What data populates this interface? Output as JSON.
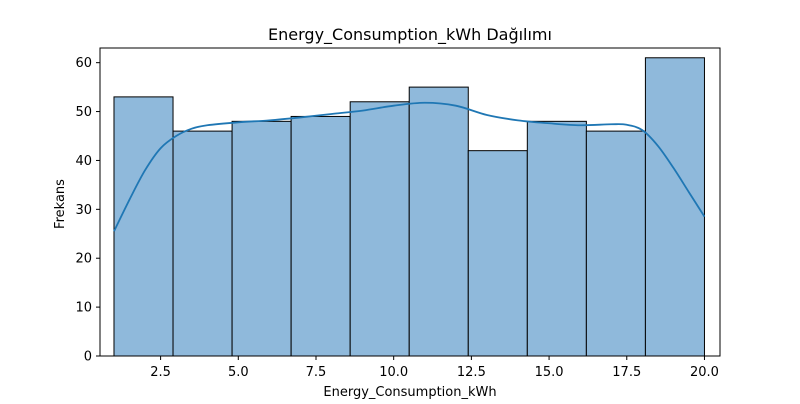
{
  "chart_data": {
    "type": "histogram",
    "title": "Energy_Consumption_kWh Dağılımı",
    "xlabel": "Energy_Consumption_kWh",
    "ylabel": "Frekans",
    "xlim": [
      0.55,
      20.5
    ],
    "ylim": [
      0,
      63
    ],
    "x_ticks": [
      "2.5",
      "5.0",
      "7.5",
      "10.0",
      "12.5",
      "15.0",
      "17.5",
      "20.0"
    ],
    "y_ticks": [
      "0",
      "10",
      "20",
      "30",
      "40",
      "50",
      "60"
    ],
    "bins": [
      {
        "start": 1.0,
        "end": 2.9,
        "count": 53
      },
      {
        "start": 2.9,
        "end": 4.8,
        "count": 46
      },
      {
        "start": 4.8,
        "end": 6.7,
        "count": 48
      },
      {
        "start": 6.7,
        "end": 8.6,
        "count": 49
      },
      {
        "start": 8.6,
        "end": 10.5,
        "count": 52
      },
      {
        "start": 10.5,
        "end": 12.4,
        "count": 55
      },
      {
        "start": 12.4,
        "end": 14.3,
        "count": 42
      },
      {
        "start": 14.3,
        "end": 16.2,
        "count": 48
      },
      {
        "start": 16.2,
        "end": 18.1,
        "count": 46
      },
      {
        "start": 18.1,
        "end": 20.0,
        "count": 61
      }
    ],
    "kde": {
      "x": [
        1.0,
        1.5,
        2.0,
        2.5,
        3.0,
        3.5,
        4.0,
        5.0,
        6.0,
        7.0,
        8.0,
        9.0,
        10.0,
        11.0,
        12.0,
        13.0,
        14.0,
        15.0,
        16.0,
        17.0,
        17.5,
        18.0,
        18.5,
        19.0,
        19.5,
        20.0
      ],
      "y": [
        25.5,
        32,
        38,
        42.5,
        45,
        46.5,
        47.2,
        47.8,
        48.2,
        48.8,
        49.5,
        50.2,
        51.2,
        51.8,
        51.2,
        49.3,
        48.2,
        47.6,
        47.2,
        47.4,
        47.3,
        46.2,
        43,
        38.5,
        33.5,
        28.5
      ]
    },
    "colors": {
      "bar_fill": "#8fb9db",
      "bar_edge": "#000000",
      "kde_line": "#1f77b4"
    },
    "grid": false,
    "legend": "none"
  }
}
